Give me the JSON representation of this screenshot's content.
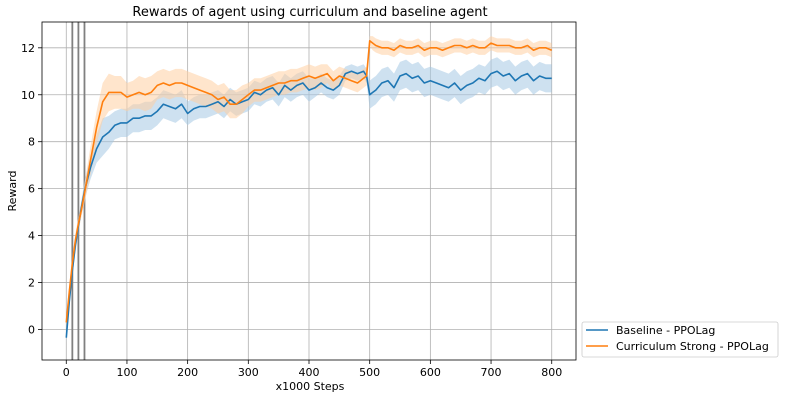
{
  "chart_data": {
    "type": "line",
    "title": "Rewards of agent using curriculum and baseline agent",
    "xlabel": "x1000 Steps",
    "ylabel": "Reward",
    "xlim": [
      -40,
      840
    ],
    "ylim": [
      -1.3,
      13.1
    ],
    "xticks": [
      0,
      100,
      200,
      300,
      400,
      500,
      600,
      700,
      800
    ],
    "yticks": [
      0,
      2,
      4,
      6,
      8,
      10,
      12
    ],
    "grid": true,
    "legend_position": "outside-bottom-right",
    "vlines": [
      10,
      20,
      30
    ],
    "series": [
      {
        "name": "Baseline - PPOLag",
        "color": "#1f77b4",
        "band_color": "#a6c8e3",
        "x": [
          0,
          5,
          10,
          15,
          20,
          25,
          30,
          40,
          50,
          60,
          70,
          80,
          90,
          100,
          110,
          120,
          130,
          140,
          150,
          160,
          170,
          180,
          190,
          200,
          210,
          220,
          230,
          240,
          250,
          260,
          270,
          280,
          290,
          300,
          310,
          320,
          330,
          340,
          350,
          360,
          370,
          380,
          390,
          400,
          410,
          420,
          430,
          440,
          450,
          460,
          470,
          480,
          490,
          495,
          500,
          505,
          510,
          520,
          530,
          540,
          550,
          560,
          570,
          580,
          590,
          600,
          610,
          620,
          630,
          640,
          650,
          660,
          670,
          680,
          690,
          700,
          710,
          720,
          730,
          740,
          750,
          760,
          770,
          780,
          790,
          800
        ],
        "values": [
          -0.35,
          1.2,
          2.5,
          3.6,
          4.4,
          5.2,
          5.9,
          6.9,
          7.7,
          8.2,
          8.4,
          8.7,
          8.8,
          8.8,
          9.0,
          9.0,
          9.1,
          9.1,
          9.3,
          9.6,
          9.5,
          9.4,
          9.6,
          9.2,
          9.4,
          9.5,
          9.5,
          9.6,
          9.7,
          9.5,
          9.8,
          9.6,
          9.7,
          9.8,
          10.1,
          10.0,
          10.2,
          10.3,
          10.0,
          10.4,
          10.2,
          10.4,
          10.5,
          10.2,
          10.3,
          10.5,
          10.3,
          10.2,
          10.4,
          10.9,
          11.0,
          10.9,
          11.0,
          10.8,
          10.0,
          10.1,
          10.2,
          10.5,
          10.6,
          10.3,
          10.8,
          10.9,
          10.7,
          10.8,
          10.5,
          10.6,
          10.5,
          10.4,
          10.3,
          10.5,
          10.2,
          10.4,
          10.5,
          10.7,
          10.6,
          10.9,
          11.0,
          10.8,
          10.9,
          10.6,
          10.8,
          10.9,
          10.6,
          10.8,
          10.7,
          10.7
        ],
        "band": [
          0.2,
          0.3,
          0.3,
          0.3,
          0.3,
          0.3,
          0.4,
          0.5,
          0.6,
          0.8,
          0.7,
          0.6,
          0.6,
          0.6,
          0.6,
          0.6,
          0.6,
          0.6,
          0.6,
          0.6,
          0.6,
          0.6,
          0.6,
          0.5,
          0.5,
          0.5,
          0.5,
          0.5,
          0.5,
          0.5,
          0.5,
          0.5,
          0.5,
          0.5,
          0.5,
          0.5,
          0.5,
          0.5,
          0.5,
          0.5,
          0.5,
          0.5,
          0.5,
          0.5,
          0.4,
          0.4,
          0.4,
          0.4,
          0.4,
          0.3,
          0.3,
          0.3,
          0.3,
          0.3,
          0.6,
          0.6,
          0.6,
          0.6,
          0.6,
          0.6,
          0.6,
          0.6,
          0.6,
          0.6,
          0.6,
          0.6,
          0.6,
          0.6,
          0.6,
          0.6,
          0.6,
          0.6,
          0.6,
          0.6,
          0.6,
          0.6,
          0.6,
          0.6,
          0.6,
          0.6,
          0.6,
          0.6,
          0.6,
          0.6,
          0.6,
          0.6
        ]
      },
      {
        "name": "Curriculum Strong - PPOLag",
        "color": "#ff7f0e",
        "band_color": "#ffcfa3",
        "x": [
          0,
          5,
          10,
          15,
          20,
          25,
          30,
          40,
          50,
          60,
          70,
          80,
          90,
          100,
          110,
          120,
          130,
          140,
          150,
          160,
          170,
          180,
          190,
          200,
          210,
          220,
          230,
          240,
          250,
          260,
          270,
          280,
          290,
          300,
          310,
          320,
          330,
          340,
          350,
          360,
          370,
          380,
          390,
          400,
          410,
          420,
          430,
          440,
          450,
          460,
          470,
          480,
          490,
          495,
          500,
          505,
          510,
          520,
          530,
          540,
          550,
          560,
          570,
          580,
          590,
          600,
          610,
          620,
          630,
          640,
          650,
          660,
          670,
          680,
          690,
          700,
          710,
          720,
          730,
          740,
          750,
          760,
          770,
          780,
          790,
          800
        ],
        "values": [
          0.3,
          1.6,
          2.8,
          3.8,
          4.5,
          5.1,
          5.8,
          7.2,
          8.6,
          9.7,
          10.1,
          10.1,
          10.1,
          9.9,
          10.0,
          10.1,
          10.0,
          10.1,
          10.4,
          10.5,
          10.4,
          10.5,
          10.5,
          10.4,
          10.3,
          10.2,
          10.1,
          10.0,
          9.8,
          9.9,
          9.6,
          9.6,
          9.8,
          10.0,
          10.2,
          10.2,
          10.3,
          10.4,
          10.5,
          10.5,
          10.6,
          10.6,
          10.7,
          10.8,
          10.7,
          10.8,
          10.9,
          10.6,
          10.8,
          10.7,
          10.6,
          10.5,
          10.7,
          10.8,
          12.3,
          12.2,
          12.1,
          12.0,
          12.0,
          11.9,
          12.1,
          12.0,
          12.0,
          12.1,
          11.9,
          12.0,
          12.0,
          11.9,
          12.0,
          12.1,
          12.1,
          12.0,
          12.1,
          12.0,
          12.0,
          12.2,
          12.1,
          12.1,
          12.1,
          12.0,
          12.0,
          12.1,
          11.9,
          12.0,
          12.0,
          11.9
        ],
        "band": [
          0.3,
          0.3,
          0.3,
          0.3,
          0.3,
          0.3,
          0.4,
          0.6,
          0.7,
          0.8,
          0.8,
          0.7,
          0.7,
          0.6,
          0.6,
          0.7,
          0.7,
          0.7,
          0.6,
          0.6,
          0.6,
          0.6,
          0.6,
          0.6,
          0.6,
          0.6,
          0.6,
          0.6,
          0.6,
          0.6,
          0.6,
          0.6,
          0.6,
          0.5,
          0.5,
          0.5,
          0.5,
          0.5,
          0.5,
          0.5,
          0.5,
          0.5,
          0.5,
          0.5,
          0.5,
          0.5,
          0.4,
          0.4,
          0.4,
          0.4,
          0.4,
          0.4,
          0.4,
          0.4,
          0.2,
          0.3,
          0.3,
          0.3,
          0.3,
          0.3,
          0.3,
          0.3,
          0.3,
          0.3,
          0.3,
          0.3,
          0.3,
          0.3,
          0.3,
          0.3,
          0.3,
          0.3,
          0.3,
          0.3,
          0.3,
          0.3,
          0.3,
          0.3,
          0.3,
          0.3,
          0.3,
          0.3,
          0.3,
          0.3,
          0.3,
          0.3
        ]
      }
    ]
  }
}
